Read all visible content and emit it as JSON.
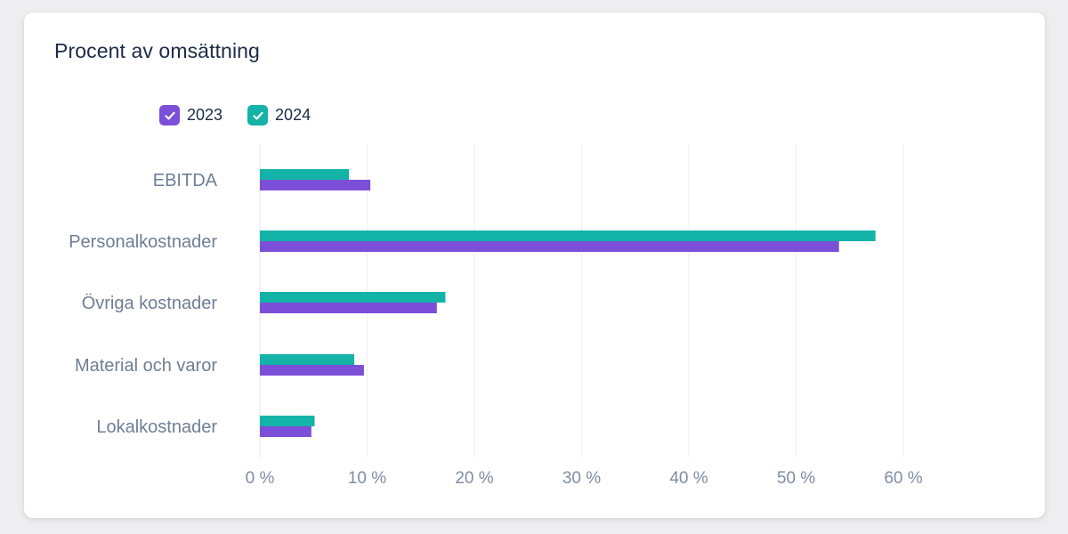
{
  "card": {
    "title": "Procent av omsättning"
  },
  "legend": [
    {
      "label": "2023",
      "color": "#7b4fd8",
      "checked": true
    },
    {
      "label": "2024",
      "color": "#13b3a7",
      "checked": true
    }
  ],
  "chart_data": {
    "type": "bar",
    "orientation": "horizontal",
    "categories": [
      "EBITDA",
      "Personalkostnader",
      "Övriga kostnader",
      "Material och varor",
      "Lokalkostnader"
    ],
    "series": [
      {
        "name": "2024",
        "color": "#13b3a7",
        "values": [
          8.3,
          57.4,
          17.3,
          8.8,
          5.1
        ]
      },
      {
        "name": "2023",
        "color": "#7b4fd8",
        "values": [
          10.3,
          54.0,
          16.5,
          9.7,
          4.8
        ]
      }
    ],
    "x_ticks": [
      "0 %",
      "10 %",
      "20 %",
      "30 %",
      "40 %",
      "50 %",
      "60 %"
    ],
    "xlim": [
      0,
      60
    ],
    "grid": true,
    "legend_position": "top-left"
  }
}
